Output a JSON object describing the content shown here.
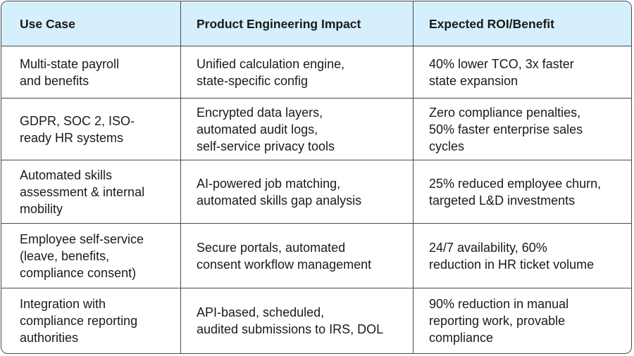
{
  "table": {
    "header": [
      "Use Case",
      "Product Engineering Impact",
      "Expected ROI/Benefit"
    ],
    "rows": [
      [
        [
          "Multi-state payroll",
          "and benefits"
        ],
        [
          "Unified calculation engine,",
          "state-specific config"
        ],
        [
          "40% lower TCO, 3x faster",
          "state expansion"
        ]
      ],
      [
        [
          "GDPR, SOC 2, ISO-",
          "ready HR systems"
        ],
        [
          "Encrypted data layers,",
          "automated audit logs,",
          "self-service privacy tools"
        ],
        [
          "Zero compliance penalties,",
          "50% faster enterprise sales",
          "cycles"
        ]
      ],
      [
        [
          "Automated skills",
          "assessment & internal",
          "mobility"
        ],
        [
          "AI-powered job matching,",
          "automated skills gap analysis"
        ],
        [
          "25% reduced employee churn,",
          "targeted L&D investments"
        ]
      ],
      [
        [
          "Employee self-service",
          "(leave, benefits,",
          "compliance consent)"
        ],
        [
          "Secure portals, automated",
          "consent workflow management"
        ],
        [
          "24/7 availability, 60%",
          "reduction in HR ticket volume"
        ]
      ],
      [
        [
          "Integration with",
          "compliance reporting",
          "authorities"
        ],
        [
          "API-based, scheduled,",
          "audited submissions to IRS, DOL"
        ],
        [
          "90% reduction in manual",
          "reporting work, provable",
          "compliance"
        ]
      ]
    ]
  }
}
